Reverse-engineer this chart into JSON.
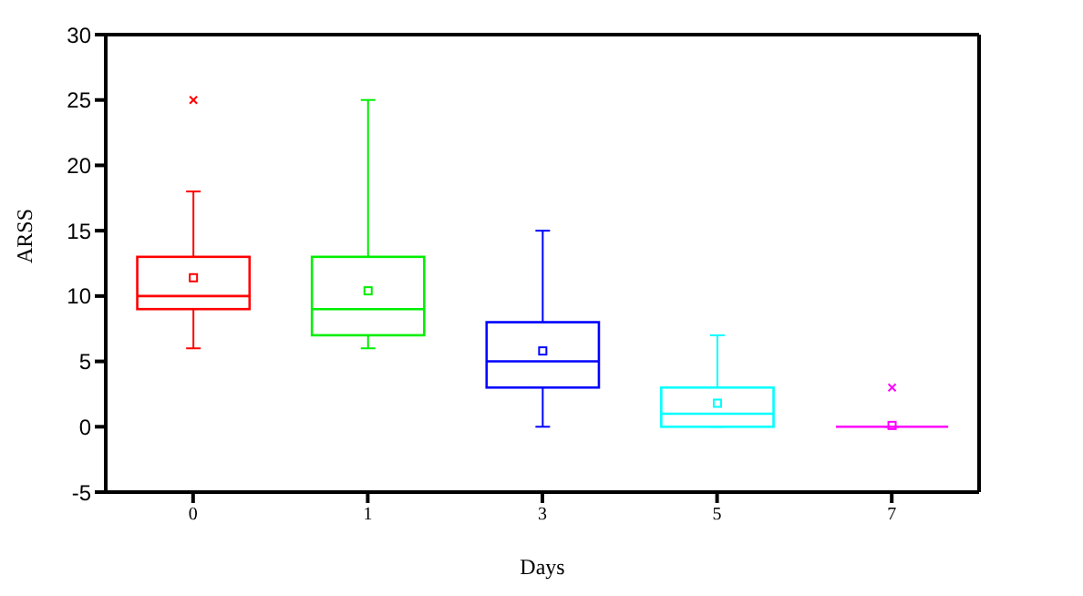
{
  "chart_data": {
    "type": "box",
    "xlabel": "Days",
    "ylabel": "ARSS",
    "categories": [
      "0",
      "1",
      "3",
      "5",
      "7"
    ],
    "colors": [
      "#ff0000",
      "#00ee00",
      "#0000ff",
      "#00ffff",
      "#ff00ff"
    ],
    "boxes": [
      {
        "low": 6,
        "q1": 9,
        "median": 10,
        "q3": 13,
        "high": 18,
        "mean": 11.4,
        "outliers": [
          25
        ]
      },
      {
        "low": 6,
        "q1": 7,
        "median": 9,
        "q3": 13,
        "high": 25,
        "mean": 10.4
      },
      {
        "low": 0,
        "q1": 3,
        "median": 5,
        "q3": 8,
        "high": 15,
        "mean": 5.8
      },
      {
        "low": 0,
        "q1": 0,
        "median": 1,
        "q3": 3,
        "high": 7,
        "mean": 1.8
      },
      {
        "low": 0,
        "q1": 0,
        "median": 0,
        "q3": 0,
        "high": 0,
        "mean": 0.1,
        "outliers": [
          3
        ]
      }
    ],
    "ylim": [
      -5,
      30
    ],
    "yticks": [
      -5,
      0,
      5,
      10,
      15,
      20,
      25,
      30
    ],
    "grid": false,
    "legend": false
  }
}
